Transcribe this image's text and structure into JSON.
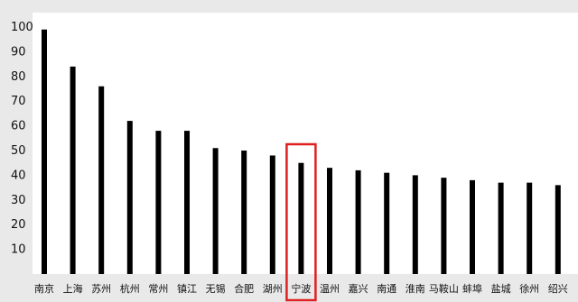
{
  "chart_data": {
    "type": "bar",
    "title": "",
    "xlabel": "",
    "ylabel": "",
    "ylim": [
      0,
      100
    ],
    "yticks": [
      10,
      20,
      30,
      40,
      50,
      60,
      70,
      80,
      90,
      100
    ],
    "categories": [
      "南京",
      "上海",
      "苏州",
      "杭州",
      "常州",
      "镇江",
      "无锡",
      "合肥",
      "湖州",
      "宁波",
      "温州",
      "嘉兴",
      "南通",
      "淮南",
      "马鞍山",
      "蚌埠",
      "盐城",
      "徐州",
      "绍兴"
    ],
    "values": [
      99,
      84,
      76,
      62,
      58,
      58,
      51,
      50,
      48,
      45,
      43,
      42,
      41,
      40,
      39,
      38,
      37,
      37,
      36
    ],
    "highlight": "宁波",
    "colors": {
      "bar": "#000000",
      "highlight_box": "#e02020",
      "background": "#e9e9e9",
      "plot_background": "#ffffff"
    },
    "grid": false
  }
}
